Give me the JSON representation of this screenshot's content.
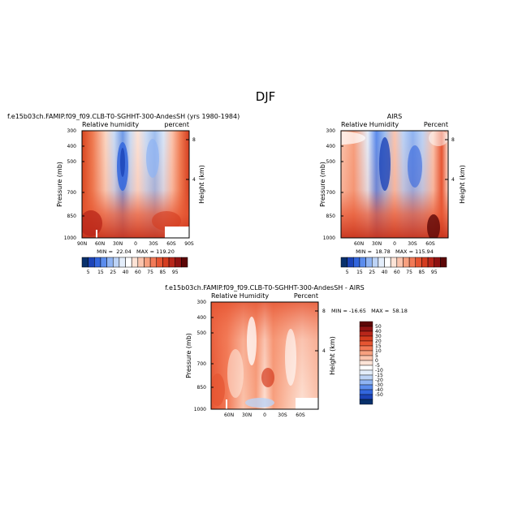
{
  "page_title": "DJF",
  "colors": {
    "model_scale": [
      "#08306b",
      "#1c44b8",
      "#3366dd",
      "#5b8ced",
      "#8fb4f3",
      "#bcd3f6",
      "#e4eefb",
      "#ffffff",
      "#fde3d6",
      "#fbc4ad",
      "#f7a07f",
      "#f27a57",
      "#e65532",
      "#d43c1f",
      "#b8261a",
      "#8f1212",
      "#5c0606"
    ],
    "diff_scale": [
      "#08306b",
      "#1c44b8",
      "#3366dd",
      "#5b8ced",
      "#8fb4f3",
      "#bcd3f6",
      "#e4eefb",
      "#ffffff",
      "#fde3d6",
      "#fbc4ad",
      "#f7a07f",
      "#f27a57",
      "#e65532",
      "#d43c1f",
      "#b8261a",
      "#8f1212",
      "#5c0606"
    ]
  },
  "chart_data": [
    {
      "type": "heatmap",
      "title": "f.e15b03ch.FAMIP.f09_f09.CLB-T0-SGHHT-300-AndesSH (yrs 1980-1984)",
      "left_label": "Relative humidity",
      "right_label": "percent",
      "ylabel": "Pressure (mb)",
      "y2label": "Height (km)",
      "xticks": [
        "90N",
        "60N",
        "30N",
        "0",
        "30S",
        "60S",
        "90S"
      ],
      "yticks": [
        "300",
        "400",
        "500",
        "700",
        "850",
        "1000"
      ],
      "y2ticks": [
        "8",
        "4"
      ],
      "stats": "MIN =  22.04   MAX = 119.20",
      "colorbar_labels": [
        "5",
        "15",
        "25",
        "40",
        "60",
        "75",
        "85",
        "95"
      ],
      "x_range": [
        90,
        -90
      ],
      "y_range": [
        1000,
        300
      ]
    },
    {
      "type": "heatmap",
      "title": "AIRS",
      "left_label": "Relative Humidity",
      "right_label": "Percent",
      "ylabel": "Pressure (mb)",
      "y2label": "Height (km)",
      "xticks": [
        "60N",
        "30N",
        "0",
        "30S",
        "60S"
      ],
      "yticks": [
        "300",
        "400",
        "500",
        "700",
        "850",
        "1000"
      ],
      "y2ticks": [
        "8",
        "4"
      ],
      "stats": "MIN =  18.78   MAX = 115.94",
      "colorbar_labels": [
        "5",
        "15",
        "25",
        "40",
        "60",
        "75",
        "85",
        "95"
      ],
      "x_range": [
        90,
        -90
      ],
      "y_range": [
        1000,
        300
      ]
    },
    {
      "type": "heatmap",
      "title": "f.e15b03ch.FAMIP.f09_f09.CLB-T0-SGHHT-300-AndesSH - AIRS",
      "left_label": "Relative Humidity",
      "right_label": "Percent",
      "ylabel": "Pressure (mb)",
      "y2label": "Height (km)",
      "xticks": [
        "60N",
        "30N",
        "0",
        "30S",
        "60S"
      ],
      "yticks": [
        "300",
        "400",
        "500",
        "700",
        "850",
        "1000"
      ],
      "y2ticks": [
        "8",
        "4"
      ],
      "stats": "MIN = -16.65   MAX =  58.18",
      "colorbar_labels": [
        "50",
        "40",
        "30",
        "20",
        "15",
        "10",
        "5",
        "0",
        "-5",
        "-10",
        "-15",
        "-20",
        "-30",
        "-40",
        "-50"
      ],
      "x_range": [
        90,
        -90
      ],
      "y_range": [
        1000,
        300
      ]
    }
  ]
}
